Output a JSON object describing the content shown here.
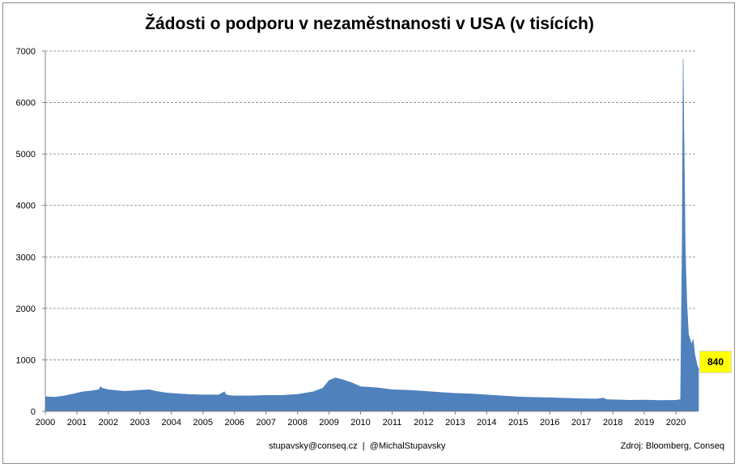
{
  "chart_data": {
    "type": "area",
    "title": "Žádosti o podporu v nezaměstnanosti v USA (v tisících)",
    "xlabel": "",
    "ylabel": "",
    "xlim": [
      2000,
      2020.75
    ],
    "ylim": [
      0,
      7000
    ],
    "yticks": [
      0,
      1000,
      2000,
      3000,
      4000,
      5000,
      6000,
      7000
    ],
    "xtick_labels": [
      "2000",
      "2001",
      "2002",
      "2003",
      "2004",
      "2005",
      "2006",
      "2007",
      "2008",
      "2009",
      "2010",
      "2011",
      "2012",
      "2013",
      "2014",
      "2015",
      "2016",
      "2017",
      "2018",
      "2019",
      "2020"
    ],
    "grid": "horizontal dashed",
    "color": "#4f81bd",
    "x": [
      2000.0,
      2000.3,
      2000.6,
      2000.9,
      2001.2,
      2001.5,
      2001.7,
      2001.75,
      2001.8,
      2002.0,
      2002.3,
      2002.5,
      2002.8,
      2003.0,
      2003.3,
      2003.5,
      2003.8,
      2004.0,
      2004.5,
      2005.0,
      2005.5,
      2005.68,
      2005.72,
      2005.8,
      2006.0,
      2006.5,
      2007.0,
      2007.5,
      2008.0,
      2008.5,
      2008.8,
      2009.0,
      2009.2,
      2009.4,
      2009.7,
      2010.0,
      2010.5,
      2011.0,
      2011.5,
      2012.0,
      2012.5,
      2013.0,
      2013.5,
      2014.0,
      2014.5,
      2015.0,
      2015.5,
      2016.0,
      2016.5,
      2017.0,
      2017.5,
      2017.7,
      2017.8,
      2018.0,
      2018.5,
      2019.0,
      2019.5,
      2020.0,
      2020.15,
      2020.2,
      2020.23,
      2020.26,
      2020.3,
      2020.35,
      2020.4,
      2020.45,
      2020.5,
      2020.55,
      2020.6,
      2020.64,
      2020.68,
      2020.72
    ],
    "values": [
      285,
      275,
      300,
      340,
      380,
      400,
      420,
      480,
      450,
      420,
      400,
      390,
      400,
      410,
      420,
      390,
      360,
      350,
      330,
      320,
      320,
      380,
      330,
      310,
      300,
      300,
      310,
      310,
      330,
      380,
      450,
      600,
      650,
      620,
      560,
      480,
      460,
      420,
      410,
      390,
      370,
      350,
      340,
      320,
      300,
      280,
      270,
      265,
      255,
      245,
      240,
      260,
      230,
      225,
      215,
      220,
      210,
      215,
      230,
      3300,
      6850,
      5200,
      3100,
      2100,
      1500,
      1400,
      1300,
      1400,
      1100,
      1000,
      880,
      840
    ],
    "annotations": [
      {
        "text": "840"
      }
    ]
  },
  "footer": {
    "contact": "stupavsky@conseq.cz  |  @MichalStupavsky",
    "source": "Zdroj: Bloomberg, Conseq"
  }
}
